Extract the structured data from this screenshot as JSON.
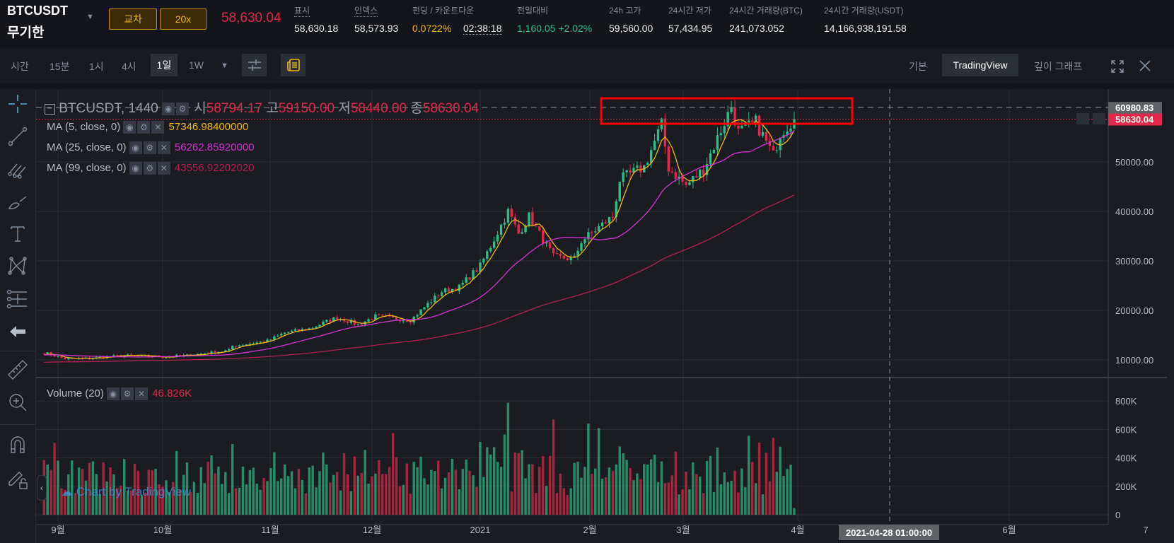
{
  "header": {
    "symbol": "BTCUSDT",
    "contract": "무기한",
    "margin_mode": "교차",
    "leverage": "20x",
    "last_price": "58,630.04",
    "stats": [
      {
        "label": "표시",
        "value": "58,630.18"
      },
      {
        "label": "인덱스",
        "value": "58,573.93"
      },
      {
        "label": "펀딩 / 카운트다운",
        "value": "0.0722%",
        "countdown": "02:38:18"
      },
      {
        "label": "전일대비",
        "value": "1,160.05 +2.02%"
      },
      {
        "label": "24h 고가",
        "value": "59,560.00"
      },
      {
        "label": "24시간 저가",
        "value": "57,434.95"
      },
      {
        "label": "24시간 거래량(BTC)",
        "value": "241,073.052"
      },
      {
        "label": "24시간 거래량(USDT)",
        "value": "14,166,938,191.58"
      }
    ]
  },
  "toolbar": {
    "intervals": [
      "시간",
      "15분",
      "1시",
      "4시",
      "1일",
      "1W"
    ],
    "active_interval": "1일",
    "views": [
      "기본",
      "TradingView",
      "깊이 그래프"
    ],
    "active_view": "TradingView"
  },
  "legend": {
    "title": "BTCUSDT, 1440",
    "o_label": "시",
    "o": "58794.17",
    "h_label": "고",
    "h": "59150.00",
    "l_label": "저",
    "l": "58440.00",
    "c_label": "종",
    "c": "58630.04",
    "ma": [
      {
        "name": "MA (5, close, 0)",
        "value": "57346.98400000",
        "color": "#f0b90b"
      },
      {
        "name": "MA (25, close, 0)",
        "value": "56262.85920000",
        "color": "#d633d6"
      },
      {
        "name": "MA (99, close, 0)",
        "value": "43556.92202020",
        "color": "#b3214f"
      }
    ],
    "volume_name": "Volume (20)",
    "volume_value": "46.826K"
  },
  "watermark": "Chart by TradingView",
  "colors": {
    "up": "#2ebd85",
    "down": "#e0294a",
    "bg": "#1b1c22",
    "grid": "#2a2d35"
  },
  "chart_data": {
    "type": "candlestick",
    "price_axis": [
      "60980.83",
      "58630.04",
      "50000.00",
      "40000.00",
      "30000.00",
      "20000.00",
      "10000.00"
    ],
    "price_ticks": [
      50000,
      40000,
      30000,
      20000,
      10000
    ],
    "volume_axis": [
      "800K",
      "600K",
      "400K",
      "200K",
      "0"
    ],
    "time_axis": [
      "9월",
      "10월",
      "11월",
      "12월",
      "2021",
      "2월",
      "3월",
      "4월",
      "6월",
      "7"
    ],
    "crosshair_time": "2021-04-28 01:00:00",
    "high_marker": 60980.83,
    "close_anchors": [
      [
        "2020-08-28",
        11500
      ],
      [
        "2020-09-03",
        10200
      ],
      [
        "2020-09-10",
        10300
      ],
      [
        "2020-09-20",
        10900
      ],
      [
        "2020-10-01",
        10600
      ],
      [
        "2020-10-08",
        10900
      ],
      [
        "2020-10-20",
        11900
      ],
      [
        "2020-10-21",
        12800
      ],
      [
        "2020-10-31",
        13800
      ],
      [
        "2020-11-05",
        15500
      ],
      [
        "2020-11-12",
        16300
      ],
      [
        "2020-11-20",
        18600
      ],
      [
        "2020-11-26",
        17100
      ],
      [
        "2020-12-01",
        18800
      ],
      [
        "2020-12-11",
        18000
      ],
      [
        "2020-12-16",
        21300
      ],
      [
        "2020-12-20",
        23800
      ],
      [
        "2020-12-25",
        24700
      ],
      [
        "2020-12-31",
        29000
      ],
      [
        "2021-01-03",
        33000
      ],
      [
        "2021-01-08",
        40000
      ],
      [
        "2021-01-11",
        35500
      ],
      [
        "2021-01-14",
        39000
      ],
      [
        "2021-01-21",
        30800
      ],
      [
        "2021-01-27",
        30400
      ],
      [
        "2021-01-29",
        34000
      ],
      [
        "2021-02-07",
        39000
      ],
      [
        "2021-02-09",
        46400
      ],
      [
        "2021-02-16",
        49000
      ],
      [
        "2021-02-21",
        57500
      ],
      [
        "2021-02-23",
        48800
      ],
      [
        "2021-02-28",
        45200
      ],
      [
        "2021-03-05",
        48500
      ],
      [
        "2021-03-09",
        54800
      ],
      [
        "2021-03-13",
        61200
      ],
      [
        "2021-03-15",
        56000
      ],
      [
        "2021-03-20",
        58000
      ],
      [
        "2021-03-25",
        51300
      ],
      [
        "2021-03-27",
        55900
      ],
      [
        "2021-03-31",
        58630
      ]
    ]
  }
}
